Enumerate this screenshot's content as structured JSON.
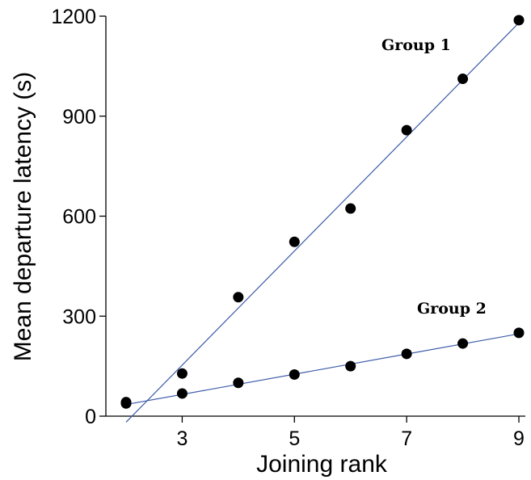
{
  "chart_data": {
    "type": "scatter",
    "title": "",
    "xlabel": "Joining rank",
    "ylabel": "Mean departure latency (s)",
    "xlim": [
      1.8,
      9.2
    ],
    "ylim": [
      0,
      1200
    ],
    "x_ticks": [
      3,
      5,
      7,
      9
    ],
    "y_ticks": [
      0,
      300,
      600,
      900,
      1200
    ],
    "grid": false,
    "legend": "none",
    "colors": {
      "fit_line": "#3b5ba8",
      "points": "#000000"
    },
    "series": [
      {
        "annotation": "Group 1",
        "points": [
          {
            "x": 2,
            "y": 38
          },
          {
            "x": 3,
            "y": 128
          },
          {
            "x": 4,
            "y": 357
          },
          {
            "x": 5,
            "y": 523
          },
          {
            "x": 6,
            "y": 623
          },
          {
            "x": 7,
            "y": 858
          },
          {
            "x": 8,
            "y": 1012
          },
          {
            "x": 9,
            "y": 1188
          }
        ],
        "fit": {
          "x": [
            2,
            9
          ],
          "y": [
            -18,
            1180
          ]
        }
      },
      {
        "annotation": "Group 2",
        "points": [
          {
            "x": 2,
            "y": 42
          },
          {
            "x": 3,
            "y": 68
          },
          {
            "x": 4,
            "y": 100
          },
          {
            "x": 5,
            "y": 125
          },
          {
            "x": 6,
            "y": 150
          },
          {
            "x": 7,
            "y": 187
          },
          {
            "x": 8,
            "y": 218
          },
          {
            "x": 9,
            "y": 250
          }
        ],
        "fit": {
          "x": [
            2,
            9
          ],
          "y": [
            35,
            247
          ]
        }
      }
    ]
  }
}
